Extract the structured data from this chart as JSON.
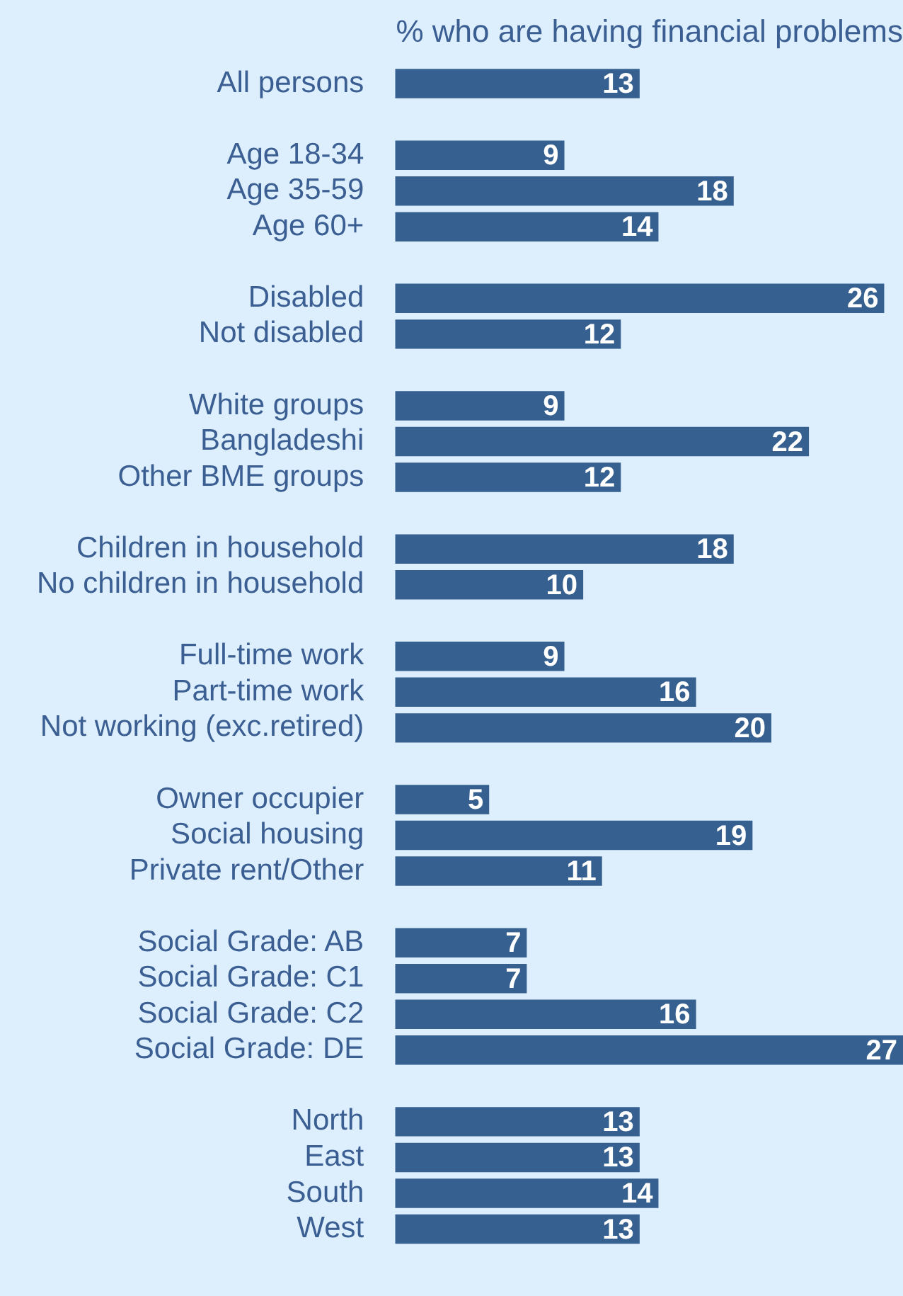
{
  "chart_data": {
    "type": "bar",
    "orientation": "horizontal",
    "title": "% who are having financial problems",
    "categories": [
      "All persons",
      null,
      "Age 18-34",
      "Age 35-59",
      "Age 60+",
      null,
      "Disabled",
      "Not disabled",
      null,
      "White groups",
      "Bangladeshi",
      "Other BME groups",
      null,
      "Children in household",
      "No children in household",
      null,
      "Full-time work",
      "Part-time work",
      "Not working (exc.retired)",
      null,
      "Owner occupier",
      "Social housing",
      "Private rent/Other",
      null,
      "Social Grade: AB",
      "Social Grade: C1",
      "Social Grade: C2",
      "Social Grade: DE",
      null,
      "North",
      "East",
      "South",
      "West"
    ],
    "values": [
      13,
      null,
      9,
      18,
      14,
      null,
      26,
      12,
      null,
      9,
      22,
      12,
      null,
      18,
      10,
      null,
      9,
      16,
      20,
      null,
      5,
      19,
      11,
      null,
      7,
      7,
      16,
      27,
      null,
      13,
      13,
      14,
      13
    ],
    "color": "#36608f",
    "data_labels": true
  }
}
